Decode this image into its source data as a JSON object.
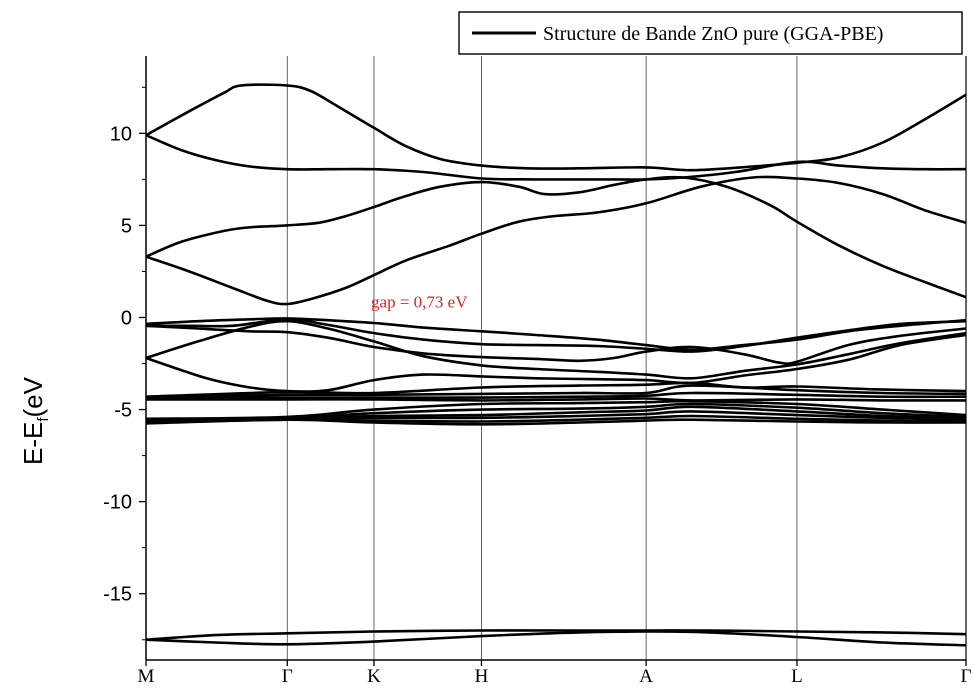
{
  "chart_data": {
    "type": "line",
    "title": "",
    "xlabel": "",
    "ylabel": "E-E",
    "ylabel_sub": "f",
    "ylabel_suffix": "(eV",
    "ylim": [
      -18.6,
      14.2
    ],
    "xlim": [
      0,
      9.46
    ],
    "yticks": [
      -15,
      -10,
      -5,
      0,
      5,
      10
    ],
    "ytick_labels": [
      "-15",
      "-10",
      "-5",
      "0",
      "5",
      "10"
    ],
    "kpoints": [
      {
        "label": "M",
        "x": 0
      },
      {
        "label": "Γ",
        "x": 1.63
      },
      {
        "label": "K",
        "x": 2.63
      },
      {
        "label": "H",
        "x": 3.87
      },
      {
        "label": "A",
        "x": 5.77
      },
      {
        "label": "L",
        "x": 7.51
      },
      {
        "label": "Γ",
        "x": 9.46
      }
    ],
    "legend": {
      "label": "Structure de Bande ZnO pure (GGA-PBE)",
      "position": "top-right"
    },
    "annotation": {
      "text": "gap = 0,73 eV",
      "x": 3.0,
      "y": 0.5,
      "color": "#e02020"
    },
    "series": [
      {
        "values": [
          [
            0,
            9.9
          ],
          [
            0.5,
            11.2
          ],
          [
            0.9,
            12.2
          ],
          [
            1.1,
            12.6
          ],
          [
            1.63,
            12.6
          ],
          [
            1.9,
            12.3
          ],
          [
            2.2,
            11.5
          ],
          [
            2.63,
            10.3
          ],
          [
            3.0,
            9.3
          ],
          [
            3.4,
            8.6
          ],
          [
            3.87,
            8.25
          ],
          [
            4.4,
            8.1
          ],
          [
            5.0,
            8.1
          ],
          [
            5.77,
            8.15
          ],
          [
            6.3,
            8.0
          ],
          [
            7.0,
            8.2
          ],
          [
            7.51,
            8.4
          ],
          [
            8.0,
            8.7
          ],
          [
            8.5,
            9.5
          ],
          [
            9.0,
            10.8
          ],
          [
            9.46,
            12.1
          ]
        ]
      },
      {
        "values": [
          [
            0,
            9.9
          ],
          [
            0.4,
            9.1
          ],
          [
            0.8,
            8.55
          ],
          [
            1.2,
            8.2
          ],
          [
            1.63,
            8.05
          ],
          [
            2.1,
            8.05
          ],
          [
            2.63,
            8.05
          ],
          [
            3.2,
            7.9
          ],
          [
            3.87,
            7.55
          ],
          [
            4.5,
            7.5
          ],
          [
            5.2,
            7.5
          ],
          [
            5.77,
            7.5
          ],
          [
            6.2,
            7.6
          ],
          [
            6.8,
            7.9
          ],
          [
            7.51,
            8.45
          ],
          [
            8.0,
            8.25
          ],
          [
            8.5,
            8.1
          ],
          [
            9.0,
            8.05
          ],
          [
            9.46,
            8.05
          ]
        ]
      },
      {
        "values": [
          [
            0,
            3.3
          ],
          [
            0.4,
            4.1
          ],
          [
            0.9,
            4.7
          ],
          [
            1.2,
            4.9
          ],
          [
            1.63,
            5.0
          ],
          [
            2.0,
            5.15
          ],
          [
            2.3,
            5.5
          ],
          [
            2.63,
            6.0
          ],
          [
            3.0,
            6.6
          ],
          [
            3.4,
            7.1
          ],
          [
            3.87,
            7.35
          ],
          [
            4.3,
            7.1
          ],
          [
            4.6,
            6.7
          ],
          [
            5.0,
            6.8
          ],
          [
            5.4,
            7.2
          ],
          [
            5.77,
            7.5
          ],
          [
            6.2,
            7.6
          ],
          [
            6.7,
            7.1
          ],
          [
            7.2,
            6.1
          ],
          [
            7.51,
            5.2
          ],
          [
            8.0,
            3.9
          ],
          [
            8.5,
            2.8
          ],
          [
            9.0,
            1.9
          ],
          [
            9.46,
            1.1
          ]
        ]
      },
      {
        "values": [
          [
            0,
            3.3
          ],
          [
            0.5,
            2.5
          ],
          [
            1.0,
            1.6
          ],
          [
            1.4,
            0.9
          ],
          [
            1.63,
            0.73
          ],
          [
            1.9,
            1.0
          ],
          [
            2.3,
            1.6
          ],
          [
            2.63,
            2.3
          ],
          [
            3.0,
            3.1
          ],
          [
            3.5,
            3.9
          ],
          [
            3.87,
            4.55
          ],
          [
            4.3,
            5.2
          ],
          [
            4.7,
            5.5
          ],
          [
            5.2,
            5.7
          ],
          [
            5.77,
            6.2
          ],
          [
            6.4,
            7.1
          ],
          [
            7.0,
            7.6
          ],
          [
            7.51,
            7.55
          ],
          [
            8.0,
            7.3
          ],
          [
            8.5,
            6.7
          ],
          [
            9.0,
            5.8
          ],
          [
            9.46,
            5.15
          ]
        ]
      },
      {
        "values": [
          [
            0,
            -0.35
          ],
          [
            0.6,
            -0.2
          ],
          [
            1.2,
            -0.1
          ],
          [
            1.63,
            -0.05
          ],
          [
            2.1,
            -0.15
          ],
          [
            2.63,
            -0.3
          ],
          [
            3.2,
            -0.55
          ],
          [
            3.87,
            -0.75
          ],
          [
            4.5,
            -0.95
          ],
          [
            5.2,
            -1.2
          ],
          [
            5.77,
            -1.5
          ],
          [
            6.3,
            -1.75
          ],
          [
            6.9,
            -1.5
          ],
          [
            7.51,
            -1.2
          ],
          [
            8.1,
            -0.75
          ],
          [
            8.7,
            -0.45
          ],
          [
            9.46,
            -0.15
          ]
        ]
      },
      {
        "values": [
          [
            0,
            -0.45
          ],
          [
            0.5,
            -0.45
          ],
          [
            1.0,
            -0.45
          ],
          [
            1.63,
            -0.1
          ],
          [
            2.1,
            -0.4
          ],
          [
            2.63,
            -0.85
          ],
          [
            3.2,
            -1.2
          ],
          [
            3.87,
            -1.45
          ],
          [
            4.5,
            -1.5
          ],
          [
            5.2,
            -1.55
          ],
          [
            5.77,
            -1.7
          ],
          [
            6.3,
            -1.85
          ],
          [
            6.9,
            -1.55
          ],
          [
            7.51,
            -1.1
          ],
          [
            8.1,
            -0.7
          ],
          [
            8.7,
            -0.35
          ],
          [
            9.46,
            -0.2
          ]
        ]
      },
      {
        "values": [
          [
            0,
            -0.45
          ],
          [
            0.6,
            -0.6
          ],
          [
            1.2,
            -0.75
          ],
          [
            1.63,
            -0.8
          ],
          [
            2.1,
            -1.1
          ],
          [
            2.63,
            -1.6
          ],
          [
            3.2,
            -1.95
          ],
          [
            3.87,
            -2.15
          ],
          [
            4.5,
            -2.25
          ],
          [
            5.0,
            -2.35
          ],
          [
            5.4,
            -2.2
          ],
          [
            5.77,
            -1.85
          ],
          [
            6.3,
            -1.6
          ],
          [
            6.9,
            -2.0
          ],
          [
            7.3,
            -2.45
          ],
          [
            7.51,
            -2.4
          ],
          [
            8.1,
            -1.5
          ],
          [
            8.7,
            -1.0
          ],
          [
            9.46,
            -0.6
          ]
        ]
      },
      {
        "values": [
          [
            0,
            -2.2
          ],
          [
            0.6,
            -1.3
          ],
          [
            1.2,
            -0.5
          ],
          [
            1.63,
            -0.2
          ],
          [
            2.1,
            -0.6
          ],
          [
            2.63,
            -1.3
          ],
          [
            3.2,
            -2.1
          ],
          [
            3.87,
            -2.6
          ],
          [
            4.5,
            -2.8
          ],
          [
            5.2,
            -2.95
          ],
          [
            5.77,
            -3.1
          ],
          [
            6.3,
            -3.3
          ],
          [
            6.9,
            -2.9
          ],
          [
            7.51,
            -2.55
          ],
          [
            8.1,
            -2.0
          ],
          [
            8.7,
            -1.4
          ],
          [
            9.46,
            -0.85
          ]
        ]
      },
      {
        "values": [
          [
            0,
            -2.2
          ],
          [
            0.7,
            -3.3
          ],
          [
            1.2,
            -3.8
          ],
          [
            1.63,
            -4.0
          ],
          [
            2.1,
            -3.95
          ],
          [
            2.63,
            -3.4
          ],
          [
            3.2,
            -3.1
          ],
          [
            3.87,
            -3.2
          ],
          [
            4.5,
            -3.3
          ],
          [
            5.2,
            -3.35
          ],
          [
            5.77,
            -3.4
          ],
          [
            6.3,
            -3.55
          ],
          [
            6.9,
            -3.15
          ],
          [
            7.51,
            -2.8
          ],
          [
            8.1,
            -2.3
          ],
          [
            8.7,
            -1.5
          ],
          [
            9.46,
            -0.95
          ]
        ]
      },
      {
        "values": [
          [
            0,
            -4.3
          ],
          [
            1.63,
            -4.05
          ],
          [
            2.63,
            -4.1
          ],
          [
            3.87,
            -3.8
          ],
          [
            5.0,
            -3.7
          ],
          [
            5.77,
            -3.65
          ],
          [
            6.3,
            -3.55
          ],
          [
            6.9,
            -3.8
          ],
          [
            7.51,
            -3.75
          ],
          [
            8.4,
            -3.9
          ],
          [
            9.46,
            -4.0
          ]
        ]
      },
      {
        "values": [
          [
            0,
            -4.35
          ],
          [
            1.63,
            -4.2
          ],
          [
            2.63,
            -4.2
          ],
          [
            3.87,
            -4.15
          ],
          [
            5.0,
            -4.1
          ],
          [
            5.77,
            -4.1
          ],
          [
            6.3,
            -3.7
          ],
          [
            7.51,
            -3.95
          ],
          [
            8.5,
            -4.1
          ],
          [
            9.46,
            -4.15
          ]
        ]
      },
      {
        "values": [
          [
            0,
            -4.4
          ],
          [
            1.63,
            -4.35
          ],
          [
            2.63,
            -4.35
          ],
          [
            3.87,
            -4.35
          ],
          [
            5.0,
            -4.3
          ],
          [
            5.77,
            -4.25
          ],
          [
            6.3,
            -4.1
          ],
          [
            7.51,
            -4.2
          ],
          [
            8.5,
            -4.3
          ],
          [
            9.46,
            -4.3
          ]
        ]
      },
      {
        "values": [
          [
            0,
            -4.45
          ],
          [
            1.63,
            -4.45
          ],
          [
            2.63,
            -4.45
          ],
          [
            3.87,
            -4.5
          ],
          [
            5.0,
            -4.45
          ],
          [
            5.77,
            -4.4
          ],
          [
            6.3,
            -4.5
          ],
          [
            7.51,
            -4.45
          ],
          [
            8.5,
            -4.5
          ],
          [
            9.46,
            -4.5
          ]
        ]
      },
      {
        "values": [
          [
            0,
            -5.5
          ],
          [
            1.63,
            -5.4
          ],
          [
            2.63,
            -5.0
          ],
          [
            3.87,
            -4.7
          ],
          [
            5.0,
            -4.65
          ],
          [
            5.77,
            -4.6
          ],
          [
            6.3,
            -4.55
          ],
          [
            7.51,
            -4.7
          ],
          [
            8.5,
            -5.0
          ],
          [
            9.46,
            -5.3
          ]
        ]
      },
      {
        "values": [
          [
            0,
            -5.55
          ],
          [
            1.63,
            -5.45
          ],
          [
            2.63,
            -5.2
          ],
          [
            3.87,
            -5.0
          ],
          [
            5.0,
            -4.95
          ],
          [
            5.77,
            -4.85
          ],
          [
            6.3,
            -4.7
          ],
          [
            7.51,
            -4.9
          ],
          [
            8.5,
            -5.2
          ],
          [
            9.46,
            -5.4
          ]
        ]
      },
      {
        "values": [
          [
            0,
            -5.6
          ],
          [
            1.63,
            -5.5
          ],
          [
            2.63,
            -5.35
          ],
          [
            3.87,
            -5.3
          ],
          [
            5.0,
            -5.15
          ],
          [
            5.77,
            -5.05
          ],
          [
            6.3,
            -4.85
          ],
          [
            7.51,
            -5.1
          ],
          [
            8.5,
            -5.35
          ],
          [
            9.46,
            -5.5
          ]
        ]
      },
      {
        "values": [
          [
            0,
            -5.65
          ],
          [
            1.63,
            -5.5
          ],
          [
            2.63,
            -5.45
          ],
          [
            3.87,
            -5.45
          ],
          [
            5.0,
            -5.35
          ],
          [
            5.77,
            -5.25
          ],
          [
            6.3,
            -5.1
          ],
          [
            7.51,
            -5.3
          ],
          [
            8.5,
            -5.45
          ],
          [
            9.46,
            -5.55
          ]
        ]
      },
      {
        "values": [
          [
            0,
            -5.7
          ],
          [
            1.63,
            -5.55
          ],
          [
            2.63,
            -5.6
          ],
          [
            3.87,
            -5.65
          ],
          [
            5.0,
            -5.55
          ],
          [
            5.77,
            -5.45
          ],
          [
            6.3,
            -5.35
          ],
          [
            7.51,
            -5.5
          ],
          [
            8.5,
            -5.6
          ],
          [
            9.46,
            -5.65
          ]
        ]
      },
      {
        "values": [
          [
            0,
            -5.75
          ],
          [
            1.63,
            -5.55
          ],
          [
            2.63,
            -5.7
          ],
          [
            3.87,
            -5.8
          ],
          [
            5.0,
            -5.7
          ],
          [
            5.77,
            -5.6
          ],
          [
            6.3,
            -5.55
          ],
          [
            7.51,
            -5.65
          ],
          [
            8.5,
            -5.7
          ],
          [
            9.46,
            -5.7
          ]
        ]
      },
      {
        "values": [
          [
            0,
            -17.5
          ],
          [
            0.8,
            -17.25
          ],
          [
            1.63,
            -17.15
          ],
          [
            2.63,
            -17.05
          ],
          [
            3.87,
            -17.0
          ],
          [
            5.0,
            -17.0
          ],
          [
            5.77,
            -17.0
          ],
          [
            6.5,
            -17.0
          ],
          [
            7.51,
            -17.05
          ],
          [
            8.5,
            -17.1
          ],
          [
            9.46,
            -17.2
          ]
        ]
      },
      {
        "values": [
          [
            0,
            -17.5
          ],
          [
            0.8,
            -17.65
          ],
          [
            1.63,
            -17.75
          ],
          [
            2.63,
            -17.6
          ],
          [
            3.87,
            -17.3
          ],
          [
            5.0,
            -17.1
          ],
          [
            5.77,
            -17.05
          ],
          [
            6.5,
            -17.1
          ],
          [
            7.51,
            -17.35
          ],
          [
            8.5,
            -17.65
          ],
          [
            9.46,
            -17.8
          ]
        ]
      }
    ]
  }
}
